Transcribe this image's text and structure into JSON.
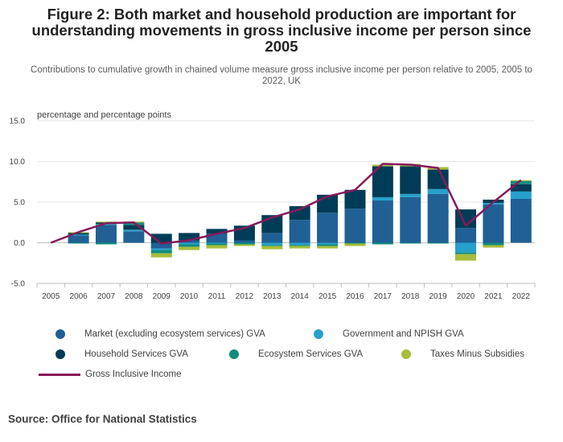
{
  "title": "Figure 2: Both market and household production are important for understanding movements in gross inclusive income per person since 2005",
  "subtitle": "Contributions to cumulative growth in chained volume measure gross inclusive income per person relative to 2005, 2005 to 2022, UK",
  "source": "Source: Office for National Statistics",
  "colors": {
    "market": "#206095",
    "government": "#27a0cc",
    "household": "#003c57",
    "ecosystem": "#118c7b",
    "taxes": "#a8bd3a",
    "line": "#871a5b"
  },
  "chart_data": {
    "type": "bar",
    "stacked": true,
    "title": "Figure 2: Both market and household production are important for understanding movements in gross inclusive income per person since 2005",
    "ylabel": "percentage and percentage points",
    "ylim": [
      -5,
      15
    ],
    "yticks": [
      "15.0",
      "10.0",
      "5.0",
      "0.0",
      "-5.0"
    ],
    "ytick_values": [
      15,
      10,
      5,
      0,
      -5
    ],
    "grid": true,
    "legend_position": "bottom",
    "categories": [
      "2005",
      "2006",
      "2007",
      "2008",
      "2009",
      "2010",
      "2011",
      "2012",
      "2013",
      "2014",
      "2015",
      "2016",
      "2017",
      "2018",
      "2019",
      "2020",
      "2021",
      "2022"
    ],
    "series": [
      {
        "name": "Market (excluding ecosystem services) GVA",
        "key": "market",
        "values": [
          0,
          0.9,
          2.2,
          1.4,
          -0.7,
          0.3,
          1.1,
          0.3,
          1.2,
          2.8,
          3.7,
          4.2,
          5.2,
          5.6,
          6.0,
          1.8,
          4.7,
          5.4
        ]
      },
      {
        "name": "Government and NPISH GVA",
        "key": "government",
        "values": [
          0,
          0.1,
          0.1,
          0.2,
          -0.2,
          -0.2,
          -0.1,
          0.0,
          -0.3,
          -0.3,
          -0.2,
          0.0,
          0.4,
          0.4,
          0.6,
          -1.2,
          0.2,
          0.9
        ]
      },
      {
        "name": "Household Services GVA",
        "key": "household",
        "values": [
          0,
          0.2,
          0.2,
          0.6,
          1.1,
          0.9,
          0.6,
          1.8,
          2.2,
          1.7,
          2.2,
          2.3,
          3.8,
          3.4,
          2.4,
          2.3,
          0.4,
          0.9
        ]
      },
      {
        "name": "Ecosystem Services GVA",
        "key": "ecosystem",
        "values": [
          0,
          -0.1,
          -0.2,
          0.3,
          -0.4,
          -0.3,
          -0.2,
          -0.2,
          -0.1,
          -0.1,
          -0.2,
          -0.1,
          -0.2,
          -0.1,
          -0.1,
          -0.2,
          -0.3,
          0.4
        ]
      },
      {
        "name": "Taxes Minus Subsidies",
        "key": "taxes",
        "values": [
          0,
          0.1,
          0.1,
          0.1,
          -0.5,
          -0.4,
          -0.4,
          -0.2,
          -0.4,
          -0.3,
          -0.3,
          -0.3,
          0.2,
          0.3,
          0.3,
          -0.8,
          -0.3,
          0.1
        ]
      }
    ],
    "line": {
      "name": "Gross Inclusive Income",
      "key": "line",
      "values": [
        0,
        1.3,
        2.4,
        2.5,
        -0.1,
        0.3,
        1.1,
        1.8,
        3.1,
        4.1,
        5.7,
        6.5,
        9.7,
        9.6,
        9.2,
        2.1,
        5.0,
        7.7
      ]
    }
  }
}
